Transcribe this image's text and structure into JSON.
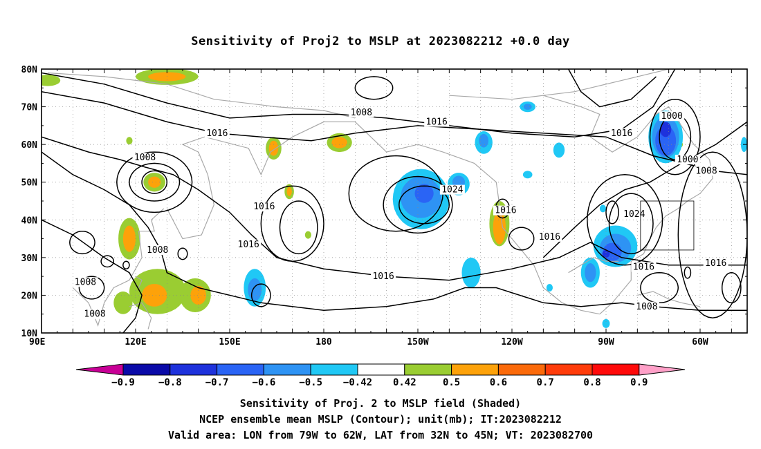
{
  "title": "Sensitivity of Proj2 to MSLP at 2023082212 +0.0 day",
  "lat_labels": [
    "80N",
    "70N",
    "60N",
    "50N",
    "40N",
    "30N",
    "20N",
    "10N"
  ],
  "lon_labels": [
    "90E",
    "120E",
    "150E",
    "180",
    "150W",
    "120W",
    "90W",
    "60W"
  ],
  "isobar_labels": [
    {
      "text": "1008",
      "lon": 192,
      "lat": 68.5
    },
    {
      "text": "1016",
      "lon": 146,
      "lat": 63
    },
    {
      "text": "1008",
      "lon": 123,
      "lat": 56.5
    },
    {
      "text": "1016",
      "lon": 216,
      "lat": 66
    },
    {
      "text": "1016",
      "lon": 275,
      "lat": 63
    },
    {
      "text": "1000",
      "lon": 291,
      "lat": 67.5
    },
    {
      "text": "1000",
      "lon": 296,
      "lat": 56
    },
    {
      "text": "1008",
      "lon": 302,
      "lat": 53
    },
    {
      "text": "1024",
      "lon": 221,
      "lat": 48
    },
    {
      "text": "1016",
      "lon": 161,
      "lat": 43.5
    },
    {
      "text": "1016",
      "lon": 238,
      "lat": 42.5
    },
    {
      "text": "1016",
      "lon": 156,
      "lat": 33.5
    },
    {
      "text": "1008",
      "lon": 127,
      "lat": 32
    },
    {
      "text": "1016",
      "lon": 252,
      "lat": 35.5
    },
    {
      "text": "1024",
      "lon": 279,
      "lat": 41.5
    },
    {
      "text": "1016",
      "lon": 305,
      "lat": 28.5
    },
    {
      "text": "1016",
      "lon": 199,
      "lat": 25
    },
    {
      "text": "1016",
      "lon": 282,
      "lat": 27.5
    },
    {
      "text": "1008",
      "lon": 104,
      "lat": 23.5
    },
    {
      "text": "1008",
      "lon": 107,
      "lat": 15
    },
    {
      "text": "1008",
      "lon": 283,
      "lat": 17
    }
  ],
  "colorbar": {
    "labels": [
      "-0.9",
      "-0.8",
      "-0.7",
      "-0.6",
      "-0.5",
      "-0.42",
      "0.42",
      "0.5",
      "0.6",
      "0.7",
      "0.8",
      "0.9"
    ],
    "colors": [
      "#0a0aa8",
      "#1e32dc",
      "#2a64f5",
      "#2e93f4",
      "#20c8f5",
      "#ffffff",
      "#9acd32",
      "#fda20a",
      "#fb6a0a",
      "#ff3c0a",
      "#ff0a0a"
    ],
    "low_color": "#c80096",
    "high_color": "#ffa0c8"
  },
  "valid_box": {
    "lon_min": -79,
    "lon_max": -62,
    "lat_min": 32,
    "lat_max": 45
  },
  "captions": [
    "Sensitivity of Proj. 2 to MSLP field (Shaded)",
    "NCEP ensemble mean MSLP (Contour); unit(mb); IT:2023082212",
    "Valid area: LON from 79W to 62W, LAT from 32N to 45N; VT: 2023082700"
  ]
}
